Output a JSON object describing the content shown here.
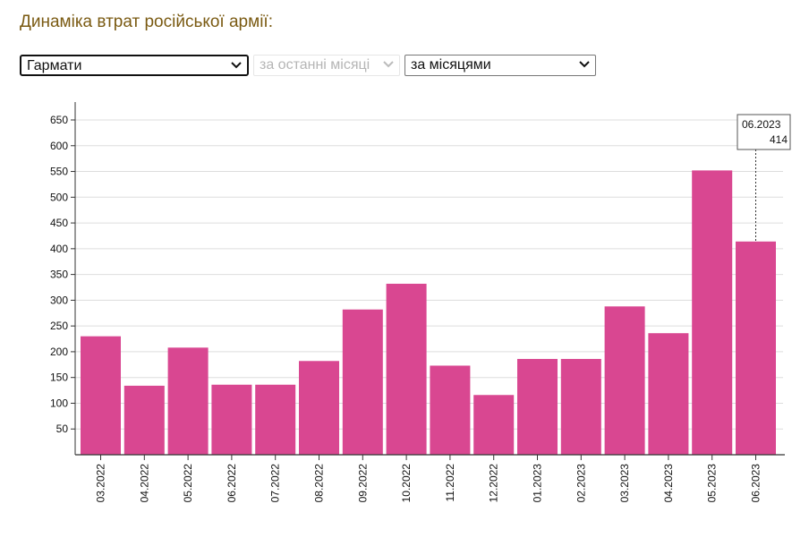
{
  "heading": "Динаміка втрат російської армії:",
  "controls": {
    "weapon": "Гармати",
    "period": "за останні місяці",
    "grouping": "за місяцями"
  },
  "colors": {
    "bar": "#d94791",
    "heading": "#7a5a12",
    "grid": "#dddddd"
  },
  "chart_data": {
    "type": "bar",
    "title": "",
    "xlabel": "",
    "ylabel": "",
    "categories": [
      "03.2022",
      "04.2022",
      "05.2022",
      "06.2022",
      "07.2022",
      "08.2022",
      "09.2022",
      "10.2022",
      "11.2022",
      "12.2022",
      "01.2023",
      "02.2023",
      "03.2023",
      "04.2023",
      "05.2023",
      "06.2023"
    ],
    "values": [
      230,
      134,
      208,
      136,
      136,
      182,
      282,
      332,
      173,
      116,
      186,
      186,
      288,
      236,
      552,
      414
    ],
    "yticks": [
      50,
      100,
      150,
      200,
      250,
      300,
      350,
      400,
      450,
      500,
      550,
      600,
      650
    ],
    "ylim": [
      0,
      650
    ],
    "grid": true,
    "tooltip": {
      "category": "06.2023",
      "value": "414"
    }
  }
}
